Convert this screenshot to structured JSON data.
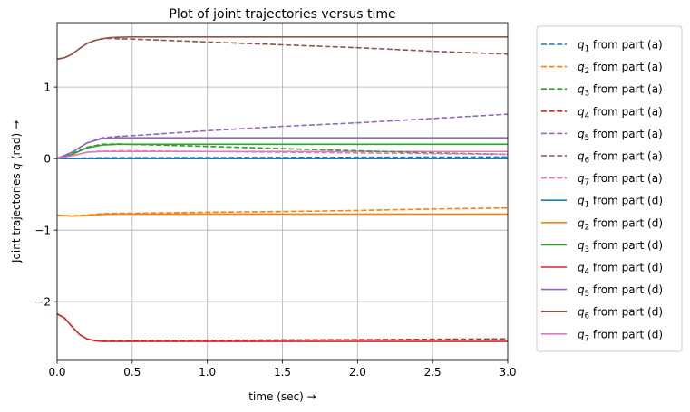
{
  "chart_data": {
    "type": "line",
    "title": "Plot of joint trajectories versus time",
    "xlabel": "time (sec)  →",
    "ylabel": "Joint trajectories q (rad)  →",
    "xlim": [
      0,
      3
    ],
    "ylim": [
      -2.82,
      1.9
    ],
    "xticks": [
      0,
      0.5,
      1,
      1.5,
      2,
      2.5,
      3
    ],
    "xtick_labels": [
      "0.0",
      "0.5",
      "1.0",
      "1.5",
      "2.0",
      "2.5",
      "3.0"
    ],
    "yticks": [
      -2,
      -1,
      0,
      1
    ],
    "ytick_labels": [
      "−2",
      "−1",
      "0",
      "1"
    ],
    "grid": true,
    "legend_position": "outside-right",
    "series": [
      {
        "name": "q1 from part (a)",
        "sub": "1",
        "suffix": " from part (a)",
        "color": "#1f77b4",
        "dash": true,
        "x": [
          0,
          0.1,
          0.2,
          0.3,
          0.4,
          0.5,
          1.0,
          1.5,
          2.0,
          2.5,
          3.0
        ],
        "y": [
          0,
          0.003,
          0.008,
          0.011,
          0.012,
          0.012,
          0.014,
          0.016,
          0.018,
          0.02,
          0.022
        ]
      },
      {
        "name": "q2 from part (a)",
        "sub": "2",
        "suffix": " from part (a)",
        "color": "#ff7f0e",
        "dash": true,
        "x": [
          0,
          0.1,
          0.2,
          0.3,
          0.4,
          0.5,
          1.0,
          1.5,
          2.0,
          2.5,
          3.0
        ],
        "y": [
          -0.79,
          -0.8,
          -0.79,
          -0.77,
          -0.765,
          -0.765,
          -0.75,
          -0.74,
          -0.725,
          -0.705,
          -0.69
        ]
      },
      {
        "name": "q3 from part (a)",
        "sub": "3",
        "suffix": " from part (a)",
        "color": "#2ca02c",
        "dash": true,
        "x": [
          0,
          0.1,
          0.2,
          0.3,
          0.4,
          0.5,
          1.0,
          1.5,
          2.0,
          2.5,
          3.0
        ],
        "y": [
          0,
          0.07,
          0.16,
          0.2,
          0.205,
          0.2,
          0.17,
          0.14,
          0.11,
          0.08,
          0.06
        ]
      },
      {
        "name": "q4 from part (a)",
        "sub": "4",
        "suffix": " from part (a)",
        "color": "#d62728",
        "dash": true,
        "x": [
          0,
          0.05,
          0.1,
          0.15,
          0.2,
          0.25,
          0.3,
          0.4,
          0.5,
          1.0,
          1.5,
          2.0,
          2.5,
          3.0
        ],
        "y": [
          -2.17,
          -2.23,
          -2.35,
          -2.46,
          -2.52,
          -2.545,
          -2.55,
          -2.55,
          -2.545,
          -2.54,
          -2.535,
          -2.53,
          -2.525,
          -2.52
        ]
      },
      {
        "name": "q5 from part (a)",
        "sub": "5",
        "suffix": " from part (a)",
        "color": "#9467bd",
        "dash": true,
        "x": [
          0,
          0.1,
          0.2,
          0.3,
          0.4,
          0.5,
          1.0,
          1.5,
          2.0,
          2.5,
          3.0
        ],
        "y": [
          0,
          0.09,
          0.22,
          0.29,
          0.31,
          0.32,
          0.39,
          0.45,
          0.5,
          0.56,
          0.62
        ]
      },
      {
        "name": "q6 from part (a)",
        "sub": "6",
        "suffix": " from part (a)",
        "color": "#8c564b",
        "dash": true,
        "x": [
          0,
          0.05,
          0.1,
          0.15,
          0.2,
          0.25,
          0.3,
          0.35,
          0.4,
          0.5,
          1.0,
          1.5,
          2.0,
          2.5,
          3.0
        ],
        "y": [
          1.39,
          1.41,
          1.46,
          1.54,
          1.61,
          1.65,
          1.675,
          1.68,
          1.675,
          1.67,
          1.63,
          1.59,
          1.55,
          1.5,
          1.46
        ]
      },
      {
        "name": "q7 from part (a)",
        "sub": "7",
        "suffix": " from part (a)",
        "color": "#e377c2",
        "dash": true,
        "x": [
          0,
          0.1,
          0.2,
          0.3,
          0.4,
          0.5,
          1.0,
          1.5,
          2.0,
          2.5,
          3.0
        ],
        "y": [
          0,
          0.04,
          0.09,
          0.105,
          0.108,
          0.108,
          0.1,
          0.09,
          0.08,
          0.07,
          0.06
        ]
      },
      {
        "name": "q1 from part (d)",
        "sub": "1",
        "suffix": " from part (d)",
        "color": "#1f77b4",
        "dash": false,
        "x": [
          0,
          0.1,
          0.2,
          0.3,
          0.4,
          0.5,
          1.0,
          1.5,
          2.0,
          2.5,
          3.0
        ],
        "y": [
          0,
          0.0,
          0.0,
          0.0,
          0.0,
          0.0,
          0.0,
          0.0,
          0.0,
          0.0,
          0.0
        ]
      },
      {
        "name": "q2 from part (d)",
        "sub": "2",
        "suffix": " from part (d)",
        "color": "#ff7f0e",
        "dash": false,
        "x": [
          0,
          0.1,
          0.2,
          0.3,
          0.4,
          0.5,
          1.0,
          1.5,
          2.0,
          2.5,
          3.0
        ],
        "y": [
          -0.79,
          -0.805,
          -0.795,
          -0.78,
          -0.775,
          -0.775,
          -0.775,
          -0.775,
          -0.775,
          -0.775,
          -0.775
        ]
      },
      {
        "name": "q3 from part (d)",
        "sub": "3",
        "suffix": " from part (d)",
        "color": "#2ca02c",
        "dash": false,
        "x": [
          0,
          0.1,
          0.2,
          0.3,
          0.4,
          0.5,
          1.0,
          1.5,
          2.0,
          2.5,
          3.0
        ],
        "y": [
          0,
          0.06,
          0.15,
          0.19,
          0.2,
          0.2,
          0.2,
          0.2,
          0.2,
          0.2,
          0.2
        ]
      },
      {
        "name": "q4 from part (d)",
        "sub": "4",
        "suffix": " from part (d)",
        "color": "#d62728",
        "dash": false,
        "x": [
          0,
          0.05,
          0.1,
          0.15,
          0.2,
          0.25,
          0.3,
          0.4,
          0.5,
          1.0,
          1.5,
          2.0,
          2.5,
          3.0
        ],
        "y": [
          -2.17,
          -2.23,
          -2.35,
          -2.46,
          -2.52,
          -2.545,
          -2.555,
          -2.555,
          -2.555,
          -2.555,
          -2.555,
          -2.555,
          -2.555,
          -2.555
        ]
      },
      {
        "name": "q5 from part (d)",
        "sub": "5",
        "suffix": " from part (d)",
        "color": "#9467bd",
        "dash": false,
        "x": [
          0,
          0.1,
          0.2,
          0.3,
          0.4,
          0.5,
          1.0,
          1.5,
          2.0,
          2.5,
          3.0
        ],
        "y": [
          0,
          0.09,
          0.22,
          0.28,
          0.29,
          0.29,
          0.29,
          0.29,
          0.29,
          0.29,
          0.29
        ]
      },
      {
        "name": "q6 from part (d)",
        "sub": "6",
        "suffix": " from part (d)",
        "color": "#8c564b",
        "dash": false,
        "x": [
          0,
          0.05,
          0.1,
          0.15,
          0.2,
          0.25,
          0.3,
          0.35,
          0.4,
          0.5,
          1.0,
          1.5,
          2.0,
          2.5,
          3.0
        ],
        "y": [
          1.39,
          1.41,
          1.46,
          1.54,
          1.61,
          1.65,
          1.675,
          1.69,
          1.695,
          1.7,
          1.7,
          1.7,
          1.7,
          1.7,
          1.7
        ]
      },
      {
        "name": "q7 from part (d)",
        "sub": "7",
        "suffix": " from part (d)",
        "color": "#e377c2",
        "dash": false,
        "x": [
          0,
          0.1,
          0.2,
          0.3,
          0.4,
          0.5,
          1.0,
          1.5,
          2.0,
          2.5,
          3.0
        ],
        "y": [
          0,
          0.04,
          0.09,
          0.1,
          0.1,
          0.1,
          0.1,
          0.1,
          0.1,
          0.1,
          0.1
        ]
      }
    ]
  }
}
